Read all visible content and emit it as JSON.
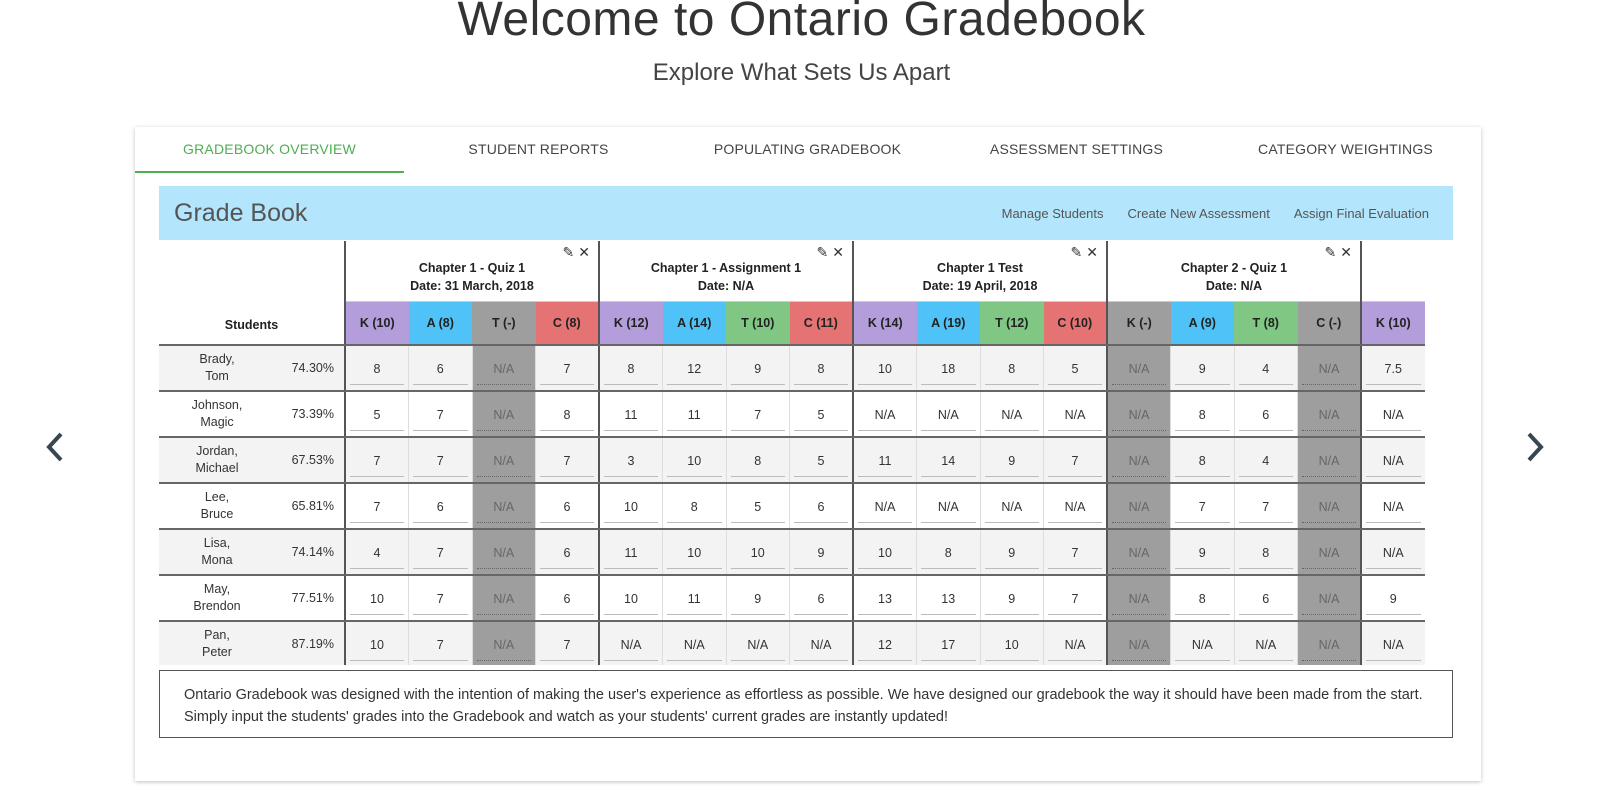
{
  "hero": {
    "title": "Welcome to Ontario Gradebook",
    "subtitle": "Explore What Sets Us Apart"
  },
  "tabs": [
    {
      "label": "GRADEBOOK OVERVIEW",
      "active": true
    },
    {
      "label": "STUDENT REPORTS",
      "active": false
    },
    {
      "label": "POPULATING GRADEBOOK",
      "active": false
    },
    {
      "label": "ASSESSMENT SETTINGS",
      "active": false
    },
    {
      "label": "CATEGORY WEIGHTINGS",
      "active": false
    }
  ],
  "gradebook": {
    "title": "Grade Book",
    "links": [
      "Manage Students",
      "Create New Assessment",
      "Assign Final Evaluation"
    ],
    "students_header": "Students",
    "icons": {
      "edit": "pencil-icon",
      "delete": "close-icon",
      "prev": "chevron-left-icon",
      "next": "chevron-right-icon"
    },
    "colors": {
      "K": "#b39ddb",
      "A": "#4fc3f7",
      "T": "#81c784",
      "C": "#e57373",
      "disabled": "#9e9e9e",
      "header_bg": "#b3e5fc",
      "active_tab": "#4caf50"
    },
    "assessments": [
      {
        "name": "Chapter 1 - Quiz 1",
        "date": "Date: 31 March, 2018",
        "categories": [
          {
            "code": "K",
            "label": "K (10)",
            "disabled": false
          },
          {
            "code": "A",
            "label": "A (8)",
            "disabled": false
          },
          {
            "code": "T",
            "label": "T (-)",
            "disabled": true
          },
          {
            "code": "C",
            "label": "C (8)",
            "disabled": false
          }
        ]
      },
      {
        "name": "Chapter 1 - Assignment 1",
        "date": "Date: N/A",
        "categories": [
          {
            "code": "K",
            "label": "K (12)",
            "disabled": false
          },
          {
            "code": "A",
            "label": "A (14)",
            "disabled": false
          },
          {
            "code": "T",
            "label": "T (10)",
            "disabled": false
          },
          {
            "code": "C",
            "label": "C (11)",
            "disabled": false
          }
        ]
      },
      {
        "name": "Chapter 1 Test",
        "date": "Date: 19 April, 2018",
        "categories": [
          {
            "code": "K",
            "label": "K (14)",
            "disabled": false
          },
          {
            "code": "A",
            "label": "A (19)",
            "disabled": false
          },
          {
            "code": "T",
            "label": "T (12)",
            "disabled": false
          },
          {
            "code": "C",
            "label": "C (10)",
            "disabled": false
          }
        ]
      },
      {
        "name": "Chapter 2 - Quiz 1",
        "date": "Date: N/A",
        "categories": [
          {
            "code": "K",
            "label": "K (-)",
            "disabled": true
          },
          {
            "code": "A",
            "label": "A (9)",
            "disabled": false
          },
          {
            "code": "T",
            "label": "T (8)",
            "disabled": false
          },
          {
            "code": "C",
            "label": "C (-)",
            "disabled": true
          }
        ]
      },
      {
        "name": "",
        "date": "",
        "categories": [
          {
            "code": "K",
            "label": "K (10)",
            "disabled": false
          }
        ]
      }
    ],
    "students": [
      {
        "last": "Brady,",
        "first": "Tom",
        "pct": "74.30%",
        "grades": [
          "8",
          "6",
          "N/A",
          "7",
          "8",
          "12",
          "9",
          "8",
          "10",
          "18",
          "8",
          "5",
          "N/A",
          "9",
          "4",
          "N/A",
          "7.5"
        ]
      },
      {
        "last": "Johnson,",
        "first": "Magic",
        "pct": "73.39%",
        "grades": [
          "5",
          "7",
          "N/A",
          "8",
          "11",
          "11",
          "7",
          "5",
          "N/A",
          "N/A",
          "N/A",
          "N/A",
          "N/A",
          "8",
          "6",
          "N/A",
          "N/A"
        ]
      },
      {
        "last": "Jordan,",
        "first": "Michael",
        "pct": "67.53%",
        "grades": [
          "7",
          "7",
          "N/A",
          "7",
          "3",
          "10",
          "8",
          "5",
          "11",
          "14",
          "9",
          "7",
          "N/A",
          "8",
          "4",
          "N/A",
          "N/A"
        ]
      },
      {
        "last": "Lee,",
        "first": "Bruce",
        "pct": "65.81%",
        "grades": [
          "7",
          "6",
          "N/A",
          "6",
          "10",
          "8",
          "5",
          "6",
          "N/A",
          "N/A",
          "N/A",
          "N/A",
          "N/A",
          "7",
          "7",
          "N/A",
          "N/A"
        ]
      },
      {
        "last": "Lisa,",
        "first": "Mona",
        "pct": "74.14%",
        "grades": [
          "4",
          "7",
          "N/A",
          "6",
          "11",
          "10",
          "10",
          "9",
          "10",
          "8",
          "9",
          "7",
          "N/A",
          "9",
          "8",
          "N/A",
          "N/A"
        ]
      },
      {
        "last": "May,",
        "first": "Brendon",
        "pct": "77.51%",
        "grades": [
          "10",
          "7",
          "N/A",
          "6",
          "10",
          "11",
          "9",
          "6",
          "13",
          "13",
          "9",
          "7",
          "N/A",
          "8",
          "6",
          "N/A",
          "9"
        ]
      },
      {
        "last": "Pan,",
        "first": "Peter",
        "pct": "87.19%",
        "grades": [
          "10",
          "7",
          "N/A",
          "7",
          "N/A",
          "N/A",
          "N/A",
          "N/A",
          "12",
          "17",
          "10",
          "N/A",
          "N/A",
          "N/A",
          "N/A",
          "N/A",
          "N/A"
        ]
      }
    ]
  },
  "description": "Ontario Gradebook was designed with the intention of making the user's experience as effortless as possible. We have designed our gradebook the way it should have been made from the start. Simply input the students' grades into the Gradebook and watch as your students' current grades are instantly updated!"
}
